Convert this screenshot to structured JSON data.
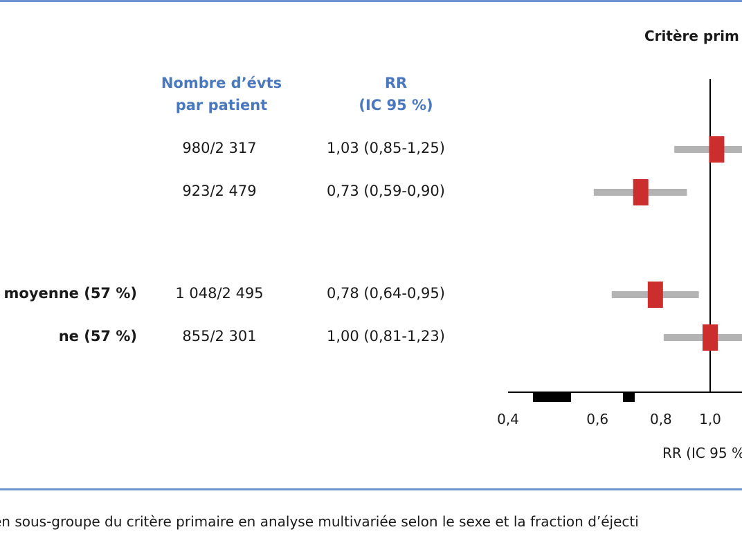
{
  "title": "Critère prim",
  "columns": {
    "events_header": [
      "Nombre d’évts",
      "par patient"
    ],
    "rr_header": [
      "RR",
      "(IC 95 %)"
    ]
  },
  "rows": [
    {
      "label": "",
      "events": "980/2 317",
      "rr_text": "1,03 (0,85-1,25)"
    },
    {
      "label": "",
      "events": "923/2 479",
      "rr_text": "0,73 (0,59-0,90)"
    },
    {
      "label": "n moyenne (57 %)",
      "events": "1 048/2 495",
      "rr_text": "0,78 (0,64-0,95)"
    },
    {
      "label": "ne (57 %)",
      "events": "855/2 301",
      "rr_text": "1,00 (0,81-1,23)"
    }
  ],
  "xlabel": "RR (IC 95 %",
  "caption": "en sous-groupe du critère primaire en analyse multivariée selon le sexe et la fraction d’éjecti",
  "colors": {
    "accent": "#4a78be",
    "rule": "#6b93cf",
    "estimate": "#cc2e2e",
    "ci": "#b3b3b3",
    "axis": "#000000"
  },
  "chart_data": {
    "type": "forest",
    "x_scale": "log",
    "reference_line": 1.0,
    "xlim": [
      0.4,
      1.25
    ],
    "xticks": [
      0.4,
      0.6,
      0.8,
      1.0
    ],
    "xtick_labels": [
      "0,4",
      "0,6",
      "0,8",
      "1,0"
    ],
    "series": [
      {
        "estimate": 1.03,
        "ci": [
          0.85,
          1.25
        ]
      },
      {
        "estimate": 0.73,
        "ci": [
          0.59,
          0.9
        ]
      },
      {
        "estimate": 0.78,
        "ci": [
          0.64,
          0.95
        ]
      },
      {
        "estimate": 1.0,
        "ci": [
          0.81,
          1.23
        ]
      }
    ]
  }
}
